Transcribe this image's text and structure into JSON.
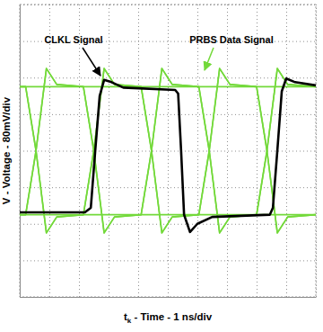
{
  "chart_data": {
    "type": "line",
    "x_label": "tk - Time - 1 ns/div",
    "y_label": "V - Voltage - 80mV/div",
    "xlim": [
      0,
      10
    ],
    "ylim": [
      -320,
      320
    ],
    "xticks": [
      0,
      1,
      2,
      3,
      4,
      5,
      6,
      7,
      8,
      9,
      10
    ],
    "yticks": [
      -320,
      -240,
      -160,
      -80,
      0,
      80,
      160,
      240,
      320
    ],
    "grid": true,
    "tick_labels": false,
    "series": [
      {
        "name": "PRBS Data Signal",
        "color": "#73d93a",
        "x": [
          0,
          0.2,
          0.55,
          0.9,
          1.25,
          2.15,
          2.5,
          2.85,
          3.2,
          4.1,
          4.45,
          4.8,
          5.15,
          6.05,
          6.4,
          6.75,
          7.1,
          8.0,
          8.35,
          8.7,
          9.05,
          10
        ],
        "values": [
          [
            -140,
            -140,
            0,
            180,
            145,
            140,
            0,
            -180,
            -145,
            -140,
            0,
            180,
            145,
            140,
            0,
            -180,
            -145,
            -140,
            0,
            180,
            145,
            140
          ],
          [
            140,
            140,
            0,
            -180,
            -145,
            -140,
            0,
            180,
            145,
            140,
            0,
            -180,
            -145,
            -140,
            0,
            180,
            145,
            140,
            0,
            -180,
            -145,
            -140
          ],
          [
            140,
            140,
            140,
            140,
            140,
            140,
            0,
            -180,
            -145,
            -140,
            -140,
            -140,
            -140,
            -140,
            0,
            180,
            145,
            140,
            140,
            140,
            140,
            140
          ],
          [
            -140,
            -140,
            -140,
            -140,
            -140,
            -140,
            0,
            180,
            145,
            140,
            140,
            140,
            140,
            140,
            0,
            -180,
            -145,
            -140,
            -140,
            -140,
            -140,
            -140
          ],
          [
            140,
            140,
            0,
            -180,
            -145,
            -140,
            -140,
            -140,
            -140,
            -140,
            0,
            180,
            145,
            140,
            140,
            140,
            140,
            140,
            0,
            -180,
            -145,
            -140
          ],
          [
            -140,
            -140,
            0,
            180,
            145,
            140,
            140,
            140,
            140,
            140,
            0,
            -180,
            -145,
            -140,
            -140,
            -140,
            -140,
            -140,
            0,
            180,
            145,
            140
          ]
        ]
      },
      {
        "name": "CLKL Signal",
        "color": "#000000",
        "x": [
          0,
          2.2,
          2.4,
          2.55,
          2.7,
          2.85,
          3.1,
          3.5,
          5.25,
          5.35,
          5.45,
          5.55,
          5.75,
          6.0,
          6.5,
          8.45,
          8.55,
          8.7,
          8.85,
          9.0,
          9.3,
          10
        ],
        "values": [
          -135,
          -135,
          -125,
          0,
          120,
          155,
          150,
          138,
          133,
          125,
          0,
          -140,
          -178,
          -160,
          -145,
          -140,
          -125,
          0,
          130,
          158,
          150,
          143
        ]
      }
    ]
  }
}
